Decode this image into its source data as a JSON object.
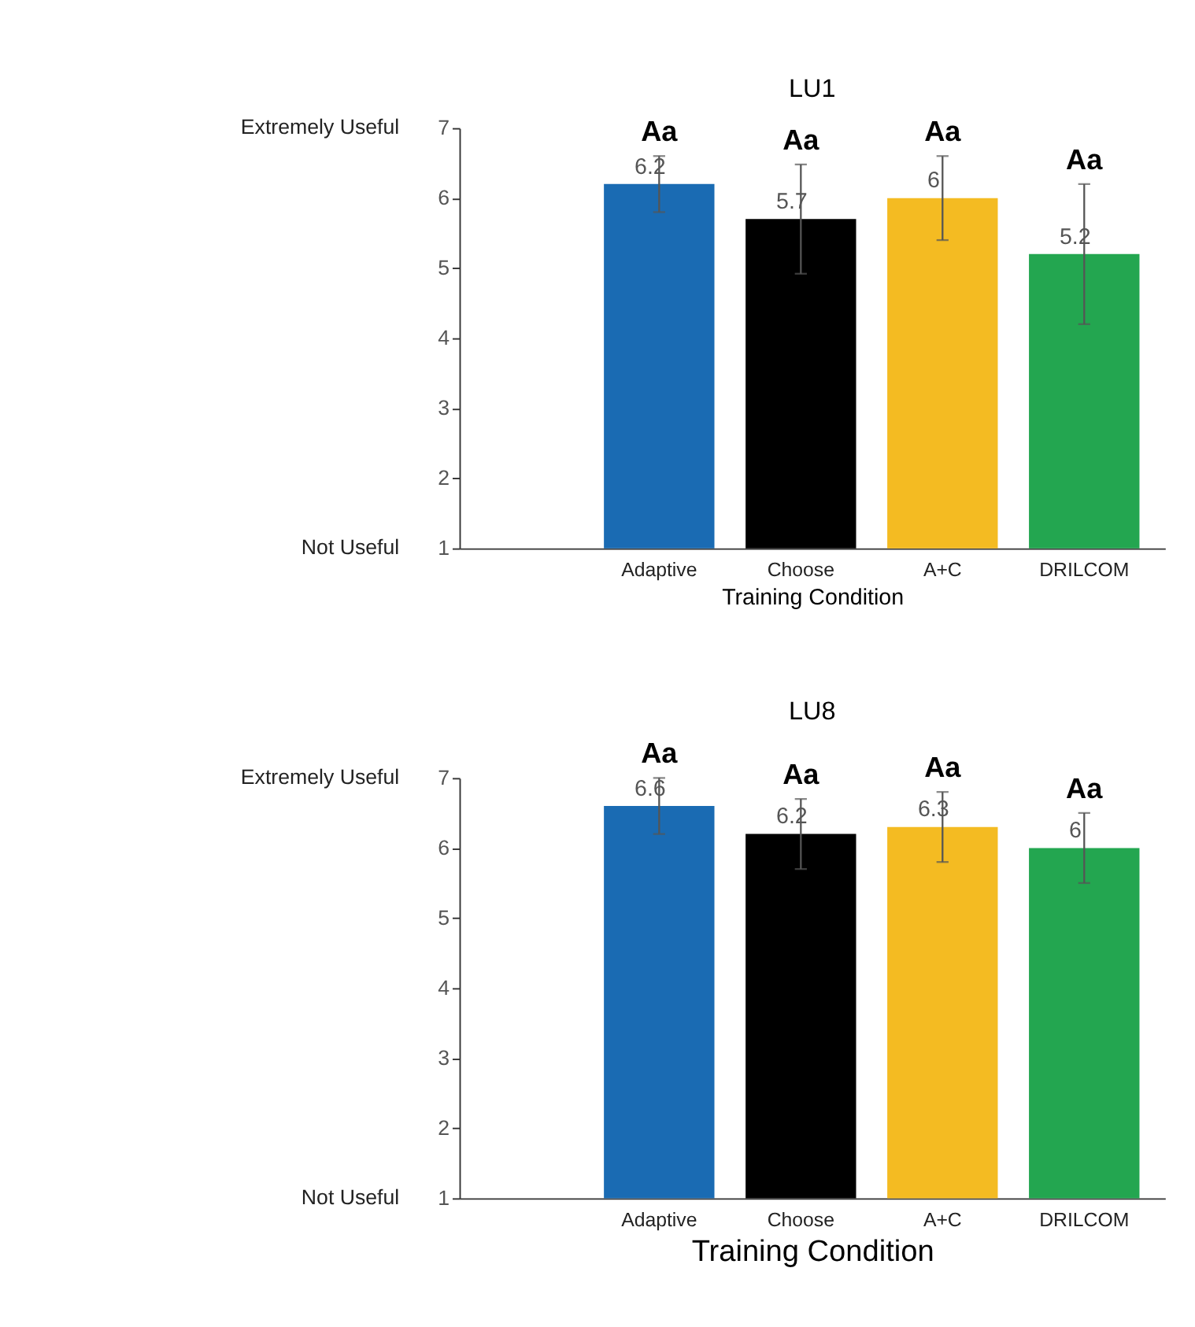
{
  "chart_data": [
    {
      "type": "bar",
      "title": "LU1",
      "xlabel": "Training Condition",
      "categories": [
        "Adaptive",
        "Choose",
        "A+C",
        "DRILCOM"
      ],
      "values": [
        6.2,
        5.7,
        6,
        5.2
      ],
      "errors": [
        0.4,
        0.78,
        0.6,
        1.0
      ],
      "colors": [
        "#1a6bb3",
        "#000000",
        "#f4bb22",
        "#23a650"
      ],
      "data_labels": true,
      "ylim": [
        1,
        7
      ],
      "yticks": [
        1,
        2,
        3,
        4,
        5,
        6,
        7
      ],
      "grid": false,
      "legend": false,
      "annotations": [
        "Aa",
        "Aa",
        "Aa",
        "Aa",
        "Extremely Useful",
        "Not Useful"
      ]
    },
    {
      "type": "bar",
      "title": "LU8",
      "xlabel": "Training Condition",
      "categories": [
        "Adaptive",
        "Choose",
        "A+C",
        "DRILCOM"
      ],
      "values": [
        6.6,
        6.2,
        6.3,
        6
      ],
      "errors": [
        0.4,
        0.5,
        0.5,
        0.5
      ],
      "colors": [
        "#1a6bb3",
        "#000000",
        "#f4bb22",
        "#23a650"
      ],
      "data_labels": true,
      "ylim": [
        1,
        7
      ],
      "yticks": [
        1,
        2,
        3,
        4,
        5,
        6,
        7
      ],
      "grid": false,
      "legend": false,
      "annotations": [
        "Aa",
        "Aa",
        "Aa",
        "Aa",
        "Extremely Useful",
        "Not Useful"
      ]
    }
  ]
}
